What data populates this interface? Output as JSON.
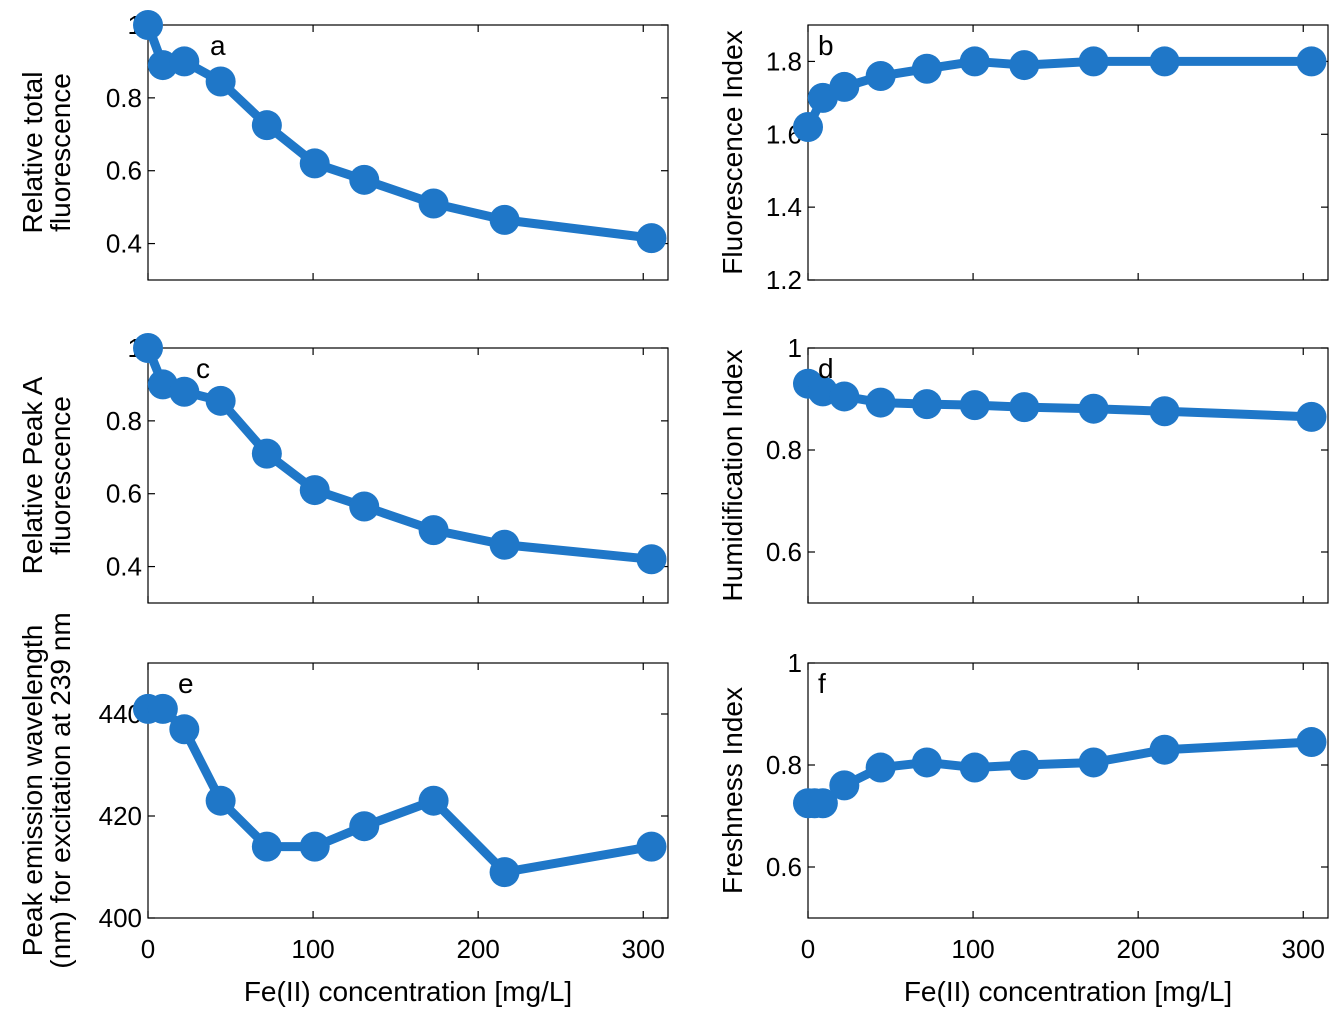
{
  "chart_data": [
    {
      "id": "a",
      "type": "line",
      "panel_label": "a",
      "xlabel": "",
      "ylabel": [
        "Relative total",
        "fluorescence"
      ],
      "xlim": [
        0,
        315
      ],
      "ylim": [
        0.3,
        1.0
      ],
      "xticks": [
        0,
        100,
        200,
        300
      ],
      "xtick_labels": false,
      "yticks": [
        0.4,
        0.6,
        0.8,
        1
      ],
      "ytick_labels": [
        "0.4",
        "0.6",
        "0.8",
        "1"
      ],
      "color": "#1f77c8",
      "x": [
        0,
        9,
        22,
        44,
        72,
        101,
        131,
        173,
        216,
        305
      ],
      "y": [
        1.0,
        0.89,
        0.9,
        0.845,
        0.725,
        0.62,
        0.575,
        0.51,
        0.465,
        0.415
      ]
    },
    {
      "id": "b",
      "type": "line",
      "panel_label": "b",
      "xlabel": "",
      "ylabel": [
        "Fluorescence Index"
      ],
      "xlim": [
        0,
        315
      ],
      "ylim": [
        1.2,
        1.9
      ],
      "xticks": [
        0,
        100,
        200,
        300
      ],
      "xtick_labels": false,
      "yticks": [
        1.2,
        1.4,
        1.6,
        1.8
      ],
      "ytick_labels": [
        "1.2",
        "1.4",
        "1.6",
        "1.8"
      ],
      "color": "#1f77c8",
      "x": [
        0,
        9,
        22,
        44,
        72,
        101,
        131,
        173,
        216,
        305
      ],
      "y": [
        1.62,
        1.7,
        1.73,
        1.76,
        1.78,
        1.8,
        1.79,
        1.8,
        1.8,
        1.8
      ]
    },
    {
      "id": "c",
      "type": "line",
      "panel_label": "c",
      "xlabel": "",
      "ylabel": [
        "Relative Peak A",
        "fluorescence"
      ],
      "xlim": [
        0,
        315
      ],
      "ylim": [
        0.3,
        1.0
      ],
      "xticks": [
        0,
        100,
        200,
        300
      ],
      "xtick_labels": false,
      "yticks": [
        0.4,
        0.6,
        0.8,
        1
      ],
      "ytick_labels": [
        "0.4",
        "0.6",
        "0.8",
        "1"
      ],
      "color": "#1f77c8",
      "x": [
        0,
        9,
        22,
        44,
        72,
        101,
        131,
        173,
        216,
        305
      ],
      "y": [
        1.0,
        0.9,
        0.88,
        0.855,
        0.71,
        0.61,
        0.565,
        0.5,
        0.46,
        0.42
      ]
    },
    {
      "id": "d",
      "type": "line",
      "panel_label": "d",
      "xlabel": "",
      "ylabel": [
        "Humidification Index"
      ],
      "xlim": [
        0,
        315
      ],
      "ylim": [
        0.5,
        1.0
      ],
      "xticks": [
        0,
        100,
        200,
        300
      ],
      "xtick_labels": false,
      "yticks": [
        0.6,
        0.8,
        1
      ],
      "ytick_labels": [
        "0.6",
        "0.8",
        "1"
      ],
      "color": "#1f77c8",
      "x": [
        0,
        9,
        22,
        44,
        72,
        101,
        131,
        173,
        216,
        305
      ],
      "y": [
        0.93,
        0.915,
        0.905,
        0.893,
        0.89,
        0.888,
        0.884,
        0.881,
        0.876,
        0.865
      ]
    },
    {
      "id": "e",
      "type": "line",
      "panel_label": "e",
      "xlabel": "Fe(II) concentration [mg/L]",
      "ylabel": [
        "Peak emission wavelength",
        "(nm) for excitation at 239 nm"
      ],
      "xlim": [
        0,
        315
      ],
      "ylim": [
        400,
        450
      ],
      "xticks": [
        0,
        100,
        200,
        300
      ],
      "xtick_labels": [
        "0",
        "100",
        "200",
        "300"
      ],
      "yticks": [
        400,
        420,
        440
      ],
      "ytick_labels": [
        "400",
        "420",
        "440"
      ],
      "color": "#1f77c8",
      "x": [
        0,
        9,
        22,
        44,
        72,
        101,
        131,
        173,
        216,
        305
      ],
      "y": [
        441,
        441,
        437,
        423,
        414,
        414,
        418,
        423,
        409,
        414
      ]
    },
    {
      "id": "f",
      "type": "line",
      "panel_label": "f",
      "xlabel": "Fe(II) concentration [mg/L]",
      "ylabel": [
        "Freshness Index"
      ],
      "xlim": [
        0,
        315
      ],
      "ylim": [
        0.5,
        1.0
      ],
      "xticks": [
        0,
        100,
        200,
        300
      ],
      "xtick_labels": [
        "0",
        "100",
        "200",
        "300"
      ],
      "yticks": [
        0.6,
        0.8,
        1
      ],
      "ytick_labels": [
        "0.6",
        "0.8",
        "1"
      ],
      "color": "#1f77c8",
      "x": [
        0,
        4,
        9,
        22,
        44,
        72,
        101,
        131,
        173,
        216,
        305
      ],
      "y": [
        0.725,
        0.725,
        0.725,
        0.76,
        0.795,
        0.805,
        0.795,
        0.8,
        0.805,
        0.83,
        0.845
      ]
    }
  ]
}
